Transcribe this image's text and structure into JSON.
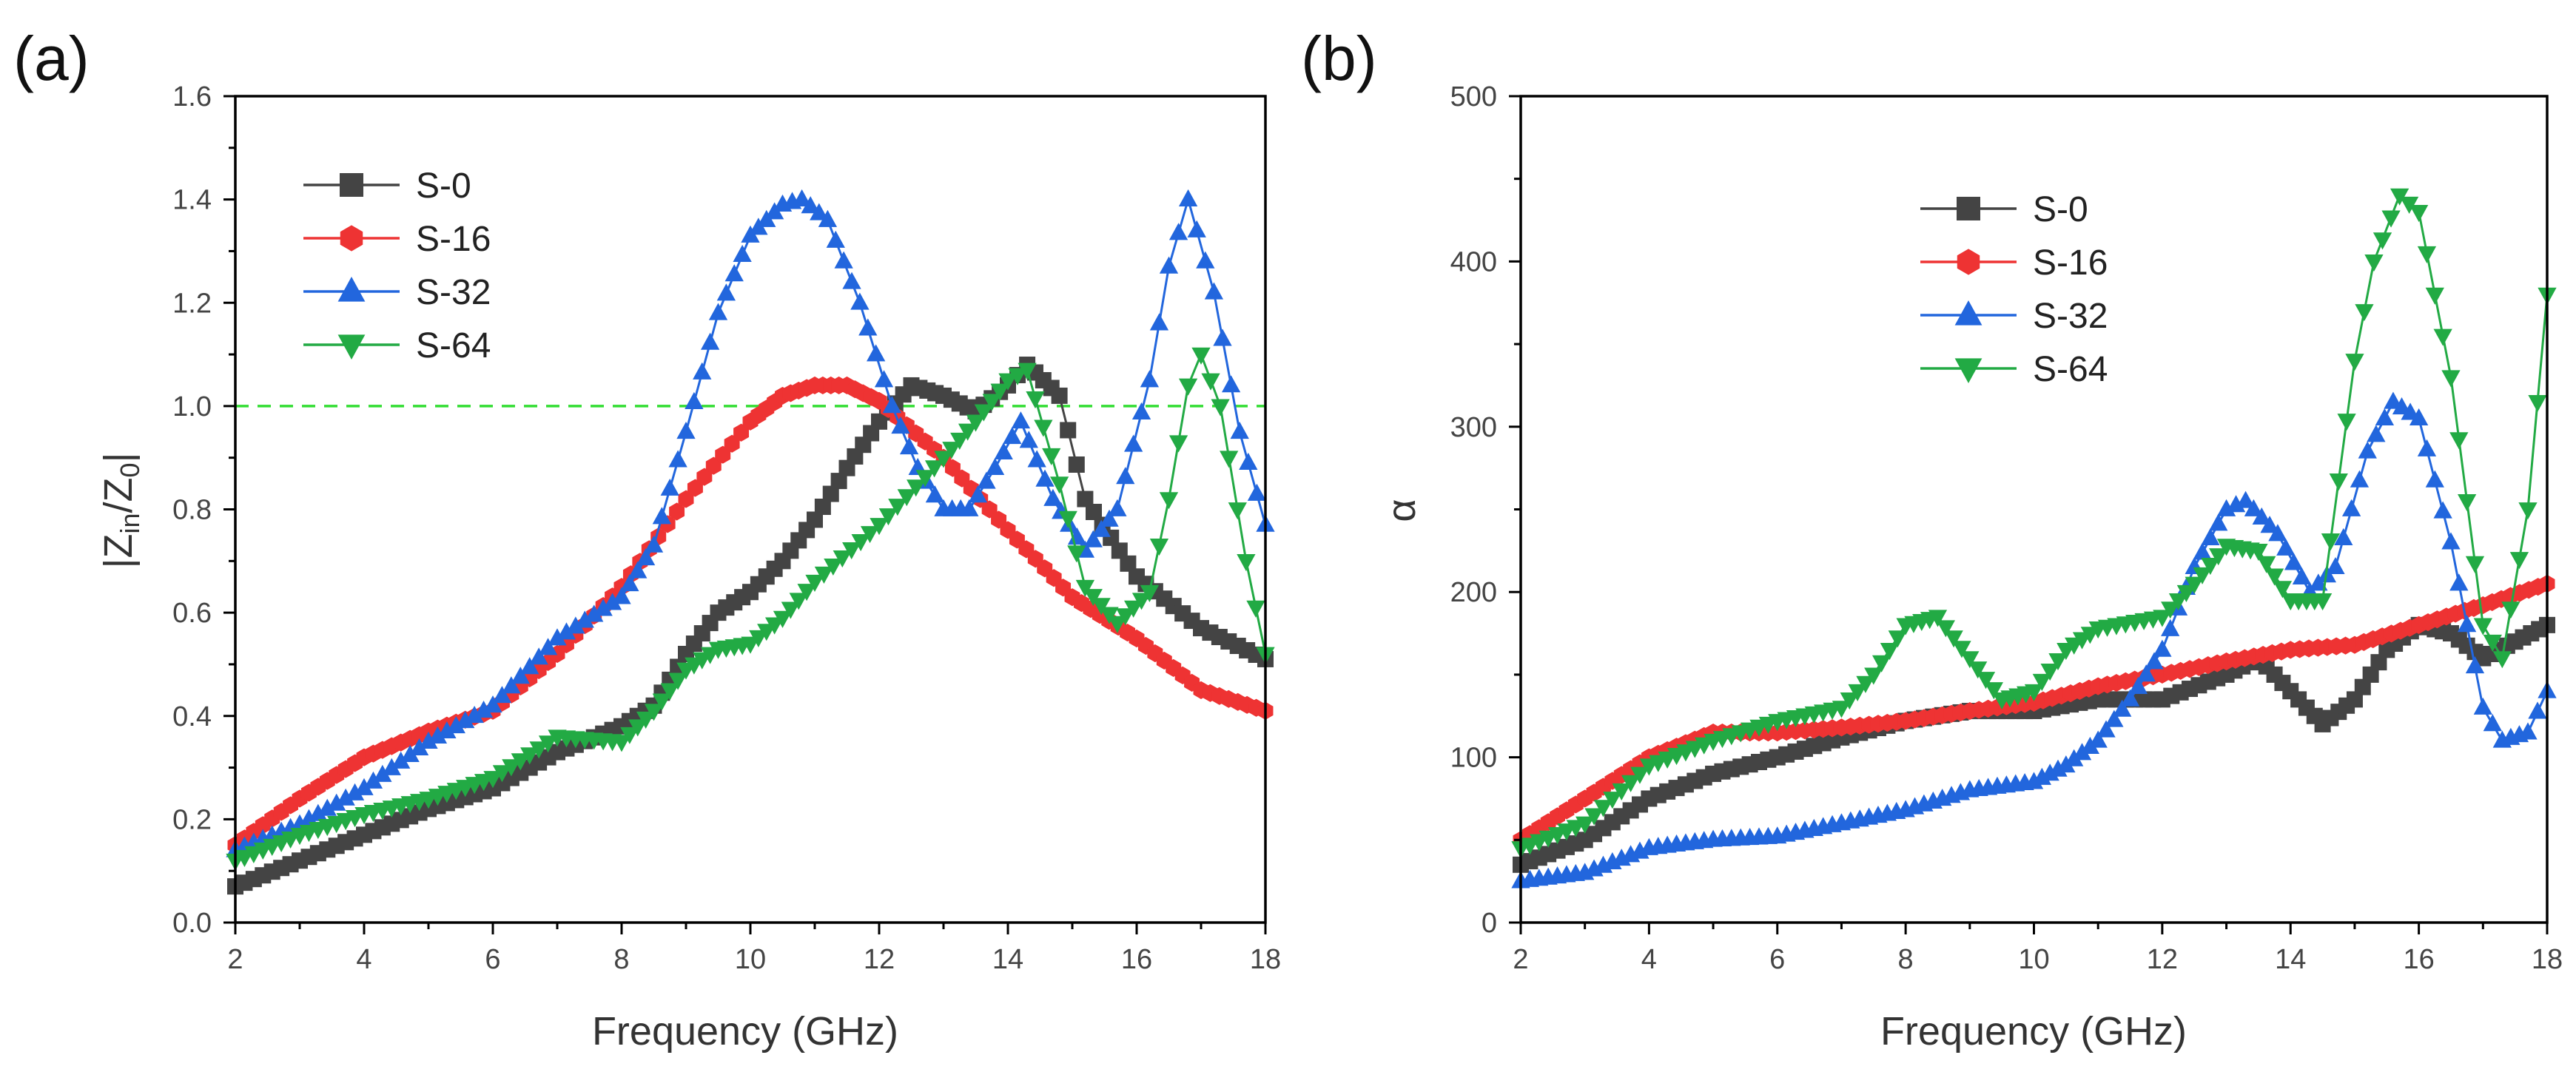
{
  "chart_data": [
    {
      "panel": "(a)",
      "type": "line",
      "title": "",
      "xlabel": "Frequency (GHz)",
      "ylabel": "|Zin/Z0|",
      "xlim": [
        2,
        18
      ],
      "ylim": [
        0.0,
        1.6
      ],
      "xticks": [
        "2",
        "4",
        "6",
        "8",
        "10",
        "12",
        "14",
        "16",
        "18"
      ],
      "yticks": [
        "0.0",
        "0.2",
        "0.4",
        "0.6",
        "0.8",
        "1.0",
        "1.2",
        "1.4",
        "1.6"
      ],
      "reference_line": {
        "y": 1.0,
        "color": "#33dd33",
        "style": "dashed"
      },
      "legend_position": "top-left",
      "series": [
        {
          "name": "S-0",
          "color": "#444444",
          "marker": "square",
          "x": [
            2,
            3,
            4,
            5,
            6,
            7,
            8,
            8.5,
            9,
            9.5,
            10,
            10.5,
            11,
            11.5,
            12,
            12.5,
            13,
            13.5,
            14,
            14.3,
            14.8,
            15.2,
            16,
            17,
            18
          ],
          "y": [
            0.07,
            0.12,
            0.17,
            0.22,
            0.26,
            0.33,
            0.38,
            0.42,
            0.52,
            0.6,
            0.64,
            0.7,
            0.78,
            0.88,
            0.97,
            1.04,
            1.02,
            0.99,
            1.04,
            1.08,
            1.02,
            0.82,
            0.67,
            0.57,
            0.51
          ]
        },
        {
          "name": "S-16",
          "color": "#ee3333",
          "marker": "hexagon",
          "x": [
            2,
            3,
            4,
            5,
            6,
            7,
            8,
            9,
            10,
            10.5,
            11,
            11.5,
            12,
            13,
            14,
            15,
            16,
            17,
            18
          ],
          "y": [
            0.15,
            0.24,
            0.32,
            0.37,
            0.41,
            0.52,
            0.65,
            0.82,
            0.97,
            1.02,
            1.04,
            1.04,
            1.01,
            0.9,
            0.76,
            0.63,
            0.55,
            0.45,
            0.41
          ]
        },
        {
          "name": "S-32",
          "color": "#2266dd",
          "marker": "triangle-up",
          "x": [
            2,
            3,
            4,
            5,
            6,
            7,
            8,
            8.5,
            9,
            9.5,
            10,
            10.5,
            10.8,
            11.2,
            11.7,
            12.2,
            12.6,
            13,
            13.4,
            13.8,
            14.2,
            14.7,
            15.2,
            15.7,
            16.2,
            16.5,
            16.8,
            17.2,
            17.6,
            18
          ],
          "y": [
            0.14,
            0.19,
            0.26,
            0.35,
            0.42,
            0.55,
            0.63,
            0.73,
            0.95,
            1.18,
            1.33,
            1.39,
            1.4,
            1.36,
            1.2,
            1.0,
            0.88,
            0.8,
            0.8,
            0.88,
            0.97,
            0.82,
            0.72,
            0.8,
            1.05,
            1.27,
            1.4,
            1.22,
            0.95,
            0.77
          ]
        },
        {
          "name": "S-64",
          "color": "#22aa44",
          "marker": "triangle-down",
          "x": [
            2,
            3,
            4,
            5,
            6,
            7,
            8,
            8.5,
            9,
            9.5,
            10,
            10.5,
            11,
            12,
            13,
            13.5,
            14,
            14.3,
            14.8,
            15.2,
            15.7,
            16.2,
            16.5,
            16.8,
            17,
            17.3,
            17.7,
            18
          ],
          "y": [
            0.12,
            0.17,
            0.21,
            0.24,
            0.28,
            0.36,
            0.35,
            0.41,
            0.49,
            0.53,
            0.54,
            0.59,
            0.66,
            0.77,
            0.9,
            0.97,
            1.05,
            1.07,
            0.85,
            0.65,
            0.58,
            0.64,
            0.82,
            1.04,
            1.1,
            1.0,
            0.7,
            0.52
          ]
        }
      ]
    },
    {
      "panel": "(b)",
      "type": "line",
      "title": "",
      "xlabel": "Frequency (GHz)",
      "ylabel": "α",
      "xlim": [
        2,
        18
      ],
      "ylim": [
        0,
        500
      ],
      "xticks": [
        "2",
        "4",
        "6",
        "8",
        "10",
        "12",
        "14",
        "16",
        "18"
      ],
      "yticks": [
        "0",
        "100",
        "200",
        "300",
        "400",
        "500"
      ],
      "legend_position": "top-center",
      "series": [
        {
          "name": "S-0",
          "color": "#444444",
          "marker": "square",
          "x": [
            2,
            3,
            4,
            5,
            6,
            7,
            8,
            9,
            10,
            11,
            12,
            13,
            13.5,
            14,
            14.5,
            15,
            15.5,
            16,
            16.5,
            17,
            17.5,
            18
          ],
          "y": [
            35,
            50,
            75,
            90,
            100,
            112,
            122,
            128,
            128,
            135,
            135,
            150,
            160,
            140,
            120,
            135,
            165,
            180,
            175,
            160,
            170,
            180
          ]
        },
        {
          "name": "S-16",
          "color": "#ee3333",
          "marker": "hexagon",
          "x": [
            2,
            3,
            4,
            5,
            6,
            7,
            8,
            9,
            10,
            11,
            12,
            13,
            14,
            15,
            16,
            17,
            18
          ],
          "y": [
            50,
            75,
            100,
            115,
            115,
            118,
            122,
            128,
            133,
            143,
            150,
            158,
            165,
            168,
            180,
            192,
            205
          ]
        },
        {
          "name": "S-32",
          "color": "#2266dd",
          "marker": "triangle-up",
          "x": [
            2,
            3,
            4,
            5,
            6,
            7,
            8,
            9,
            10,
            10.5,
            11,
            11.5,
            12,
            12.5,
            13,
            13.3,
            13.8,
            14.3,
            14.7,
            15.2,
            15.6,
            16,
            16.5,
            17,
            17.3,
            17.7,
            18
          ],
          "y": [
            25,
            30,
            45,
            50,
            52,
            60,
            68,
            80,
            85,
            95,
            110,
            135,
            165,
            215,
            250,
            255,
            235,
            200,
            215,
            285,
            315,
            305,
            230,
            130,
            110,
            115,
            140
          ]
        },
        {
          "name": "S-64",
          "color": "#22aa44",
          "marker": "triangle-down",
          "x": [
            2,
            3,
            4,
            5,
            6,
            7,
            7.5,
            8,
            8.5,
            9,
            9.5,
            10,
            10.5,
            11,
            12,
            12.5,
            13,
            13.5,
            14,
            14.5,
            15,
            15.3,
            15.7,
            16,
            16.5,
            17,
            17.3,
            17.7,
            18
          ],
          "y": [
            45,
            60,
            95,
            110,
            122,
            130,
            150,
            180,
            185,
            160,
            135,
            140,
            165,
            178,
            185,
            205,
            228,
            225,
            195,
            195,
            340,
            400,
            440,
            430,
            330,
            180,
            160,
            250,
            380
          ]
        }
      ]
    }
  ]
}
